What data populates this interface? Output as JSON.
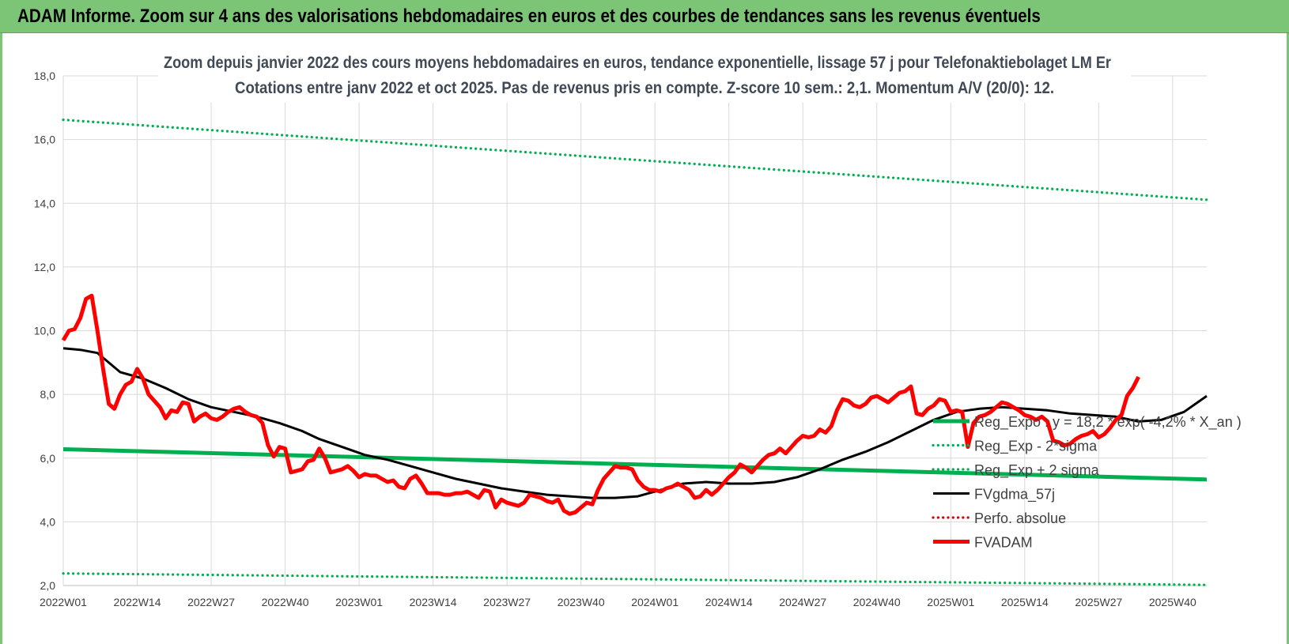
{
  "page_title": "ADAM Informe. Zoom sur 4 ans des valorisations hebdomadaires en euros et des courbes de tendances sans les revenus éventuels",
  "chart_data": {
    "type": "line",
    "title_line1": "Zoom depuis janvier 2022 des cours moyens hebdomadaires en euros, tendance exponentielle, lissage 57 j pour Telefonaktiebolaget LM Er",
    "title_line2": "Cotations entre janv 2022 et oct 2025. Pas de revenus pris en compte. Z-score 10 sem.: 2,1. Momentum A/V (20/0): 12.",
    "ylim": [
      2,
      18
    ],
    "y_ticks": [
      "2,0",
      "4,0",
      "6,0",
      "8,0",
      "10,0",
      "12,0",
      "14,0",
      "16,0",
      "18,0"
    ],
    "x_ticks": [
      "2022W01",
      "2022W14",
      "2022W27",
      "2022W40",
      "2023W01",
      "2023W14",
      "2023W27",
      "2023W40",
      "2024W01",
      "2024W14",
      "2024W27",
      "2024W40",
      "2025W01",
      "2025W14",
      "2025W27",
      "2025W40"
    ],
    "x_range_weeks": [
      0,
      201
    ],
    "legend_position": "right",
    "series": [
      {
        "name": "Reg_Expo : y = 18,2 * exp( -4,2% * X_an )",
        "style": "solid-thick",
        "color": "#00b050",
        "points": [
          [
            0,
            6.28
          ],
          [
            201,
            5.33
          ]
        ]
      },
      {
        "name": "Reg_Exp - 2*sigma",
        "style": "dotted",
        "color": "#00b050",
        "points": [
          [
            0,
            2.38
          ],
          [
            201,
            2.02
          ]
        ]
      },
      {
        "name": "Reg_Exp + 2 sigma",
        "style": "dotted",
        "color": "#00b050",
        "points": [
          [
            0,
            16.62
          ],
          [
            201,
            14.11
          ]
        ]
      },
      {
        "name": "FVgdma_57j",
        "style": "solid",
        "color": "#000000",
        "points": [
          [
            0,
            9.45
          ],
          [
            3,
            9.4
          ],
          [
            6,
            9.3
          ],
          [
            10,
            8.7
          ],
          [
            14,
            8.5
          ],
          [
            18,
            8.2
          ],
          [
            22,
            7.85
          ],
          [
            26,
            7.6
          ],
          [
            30,
            7.45
          ],
          [
            34,
            7.3
          ],
          [
            38,
            7.1
          ],
          [
            42,
            6.85
          ],
          [
            45,
            6.6
          ],
          [
            49,
            6.35
          ],
          [
            53,
            6.1
          ],
          [
            57,
            5.95
          ],
          [
            61,
            5.75
          ],
          [
            65,
            5.55
          ],
          [
            69,
            5.35
          ],
          [
            73,
            5.2
          ],
          [
            77,
            5.05
          ],
          [
            81,
            4.95
          ],
          [
            85,
            4.85
          ],
          [
            89,
            4.8
          ],
          [
            93,
            4.75
          ],
          [
            97,
            4.75
          ],
          [
            101,
            4.8
          ],
          [
            105,
            5.0
          ],
          [
            109,
            5.2
          ],
          [
            113,
            5.25
          ],
          [
            117,
            5.2
          ],
          [
            121,
            5.2
          ],
          [
            125,
            5.25
          ],
          [
            129,
            5.4
          ],
          [
            133,
            5.65
          ],
          [
            137,
            5.95
          ],
          [
            141,
            6.2
          ],
          [
            145,
            6.5
          ],
          [
            149,
            6.85
          ],
          [
            153,
            7.2
          ],
          [
            157,
            7.45
          ],
          [
            161,
            7.55
          ],
          [
            165,
            7.6
          ],
          [
            169,
            7.55
          ],
          [
            173,
            7.5
          ],
          [
            177,
            7.4
          ],
          [
            181,
            7.35
          ],
          [
            185,
            7.3
          ],
          [
            189,
            7.15
          ],
          [
            193,
            7.2
          ],
          [
            197,
            7.45
          ],
          [
            201,
            7.95
          ]
        ]
      },
      {
        "name": "Perfo. absolue",
        "style": "dotted",
        "color": "#e00000",
        "points": []
      },
      {
        "name": "FVADAM",
        "style": "solid-thick",
        "color": "#ff0000",
        "points": [
          [
            0,
            9.7
          ],
          [
            1,
            10.0
          ],
          [
            2,
            10.05
          ],
          [
            3,
            10.4
          ],
          [
            4,
            11.0
          ],
          [
            5,
            11.1
          ],
          [
            6,
            10.0
          ],
          [
            7,
            8.8
          ],
          [
            8,
            7.7
          ],
          [
            9,
            7.55
          ],
          [
            10,
            8.0
          ],
          [
            11,
            8.3
          ],
          [
            12,
            8.4
          ],
          [
            13,
            8.8
          ],
          [
            14,
            8.5
          ],
          [
            15,
            8.0
          ],
          [
            16,
            7.8
          ],
          [
            17,
            7.6
          ],
          [
            18,
            7.25
          ],
          [
            19,
            7.5
          ],
          [
            20,
            7.45
          ],
          [
            21,
            7.75
          ],
          [
            22,
            7.7
          ],
          [
            23,
            7.15
          ],
          [
            24,
            7.3
          ],
          [
            25,
            7.4
          ],
          [
            26,
            7.25
          ],
          [
            27,
            7.2
          ],
          [
            28,
            7.3
          ],
          [
            29,
            7.45
          ],
          [
            30,
            7.55
          ],
          [
            31,
            7.6
          ],
          [
            32,
            7.45
          ],
          [
            33,
            7.35
          ],
          [
            34,
            7.3
          ],
          [
            35,
            7.1
          ],
          [
            36,
            6.4
          ],
          [
            37,
            6.05
          ],
          [
            38,
            6.35
          ],
          [
            39,
            6.3
          ],
          [
            40,
            5.55
          ],
          [
            41,
            5.6
          ],
          [
            42,
            5.65
          ],
          [
            43,
            5.9
          ],
          [
            44,
            5.95
          ],
          [
            45,
            6.3
          ],
          [
            46,
            6.0
          ],
          [
            47,
            5.55
          ],
          [
            48,
            5.6
          ],
          [
            49,
            5.65
          ],
          [
            50,
            5.75
          ],
          [
            51,
            5.6
          ],
          [
            52,
            5.4
          ],
          [
            53,
            5.5
          ],
          [
            54,
            5.45
          ],
          [
            55,
            5.45
          ],
          [
            56,
            5.35
          ],
          [
            57,
            5.25
          ],
          [
            58,
            5.3
          ],
          [
            59,
            5.1
          ],
          [
            60,
            5.05
          ],
          [
            61,
            5.35
          ],
          [
            62,
            5.45
          ],
          [
            63,
            5.2
          ],
          [
            64,
            4.9
          ],
          [
            65,
            4.9
          ],
          [
            66,
            4.9
          ],
          [
            67,
            4.85
          ],
          [
            68,
            4.85
          ],
          [
            69,
            4.9
          ],
          [
            70,
            4.9
          ],
          [
            71,
            4.95
          ],
          [
            72,
            4.85
          ],
          [
            73,
            4.75
          ],
          [
            74,
            5.0
          ],
          [
            75,
            4.95
          ],
          [
            76,
            4.45
          ],
          [
            77,
            4.7
          ],
          [
            78,
            4.6
          ],
          [
            79,
            4.55
          ],
          [
            80,
            4.5
          ],
          [
            81,
            4.6
          ],
          [
            82,
            4.85
          ],
          [
            83,
            4.8
          ],
          [
            84,
            4.75
          ],
          [
            85,
            4.65
          ],
          [
            86,
            4.6
          ],
          [
            87,
            4.7
          ],
          [
            88,
            4.35
          ],
          [
            89,
            4.25
          ],
          [
            90,
            4.3
          ],
          [
            91,
            4.45
          ],
          [
            92,
            4.6
          ],
          [
            93,
            4.55
          ],
          [
            94,
            5.0
          ],
          [
            95,
            5.35
          ],
          [
            96,
            5.55
          ],
          [
            97,
            5.75
          ],
          [
            98,
            5.7
          ],
          [
            99,
            5.7
          ],
          [
            100,
            5.65
          ],
          [
            101,
            5.3
          ],
          [
            102,
            5.1
          ],
          [
            103,
            5.0
          ],
          [
            104,
            5.0
          ],
          [
            105,
            4.95
          ],
          [
            106,
            5.05
          ],
          [
            107,
            5.1
          ],
          [
            108,
            5.2
          ],
          [
            109,
            5.1
          ],
          [
            110,
            5.0
          ],
          [
            111,
            4.75
          ],
          [
            112,
            4.8
          ],
          [
            113,
            5.0
          ],
          [
            114,
            4.85
          ],
          [
            115,
            5.0
          ],
          [
            116,
            5.2
          ],
          [
            117,
            5.4
          ],
          [
            118,
            5.55
          ],
          [
            119,
            5.8
          ],
          [
            120,
            5.7
          ],
          [
            121,
            5.55
          ],
          [
            122,
            5.75
          ],
          [
            123,
            5.95
          ],
          [
            124,
            6.1
          ],
          [
            125,
            6.15
          ],
          [
            126,
            6.3
          ],
          [
            127,
            6.15
          ],
          [
            128,
            6.35
          ],
          [
            129,
            6.55
          ],
          [
            130,
            6.7
          ],
          [
            131,
            6.65
          ],
          [
            132,
            6.7
          ],
          [
            133,
            6.9
          ],
          [
            134,
            6.8
          ],
          [
            135,
            7.0
          ],
          [
            136,
            7.5
          ],
          [
            137,
            7.85
          ],
          [
            138,
            7.8
          ],
          [
            139,
            7.65
          ],
          [
            140,
            7.6
          ],
          [
            141,
            7.7
          ],
          [
            142,
            7.9
          ],
          [
            143,
            7.95
          ],
          [
            144,
            7.85
          ],
          [
            145,
            7.75
          ],
          [
            146,
            7.9
          ],
          [
            147,
            8.05
          ],
          [
            148,
            8.1
          ],
          [
            149,
            8.25
          ],
          [
            150,
            7.4
          ],
          [
            151,
            7.35
          ],
          [
            152,
            7.55
          ],
          [
            153,
            7.65
          ],
          [
            154,
            7.85
          ],
          [
            155,
            7.8
          ],
          [
            156,
            7.45
          ],
          [
            157,
            7.5
          ],
          [
            158,
            7.45
          ],
          [
            159,
            6.35
          ],
          [
            160,
            7.1
          ],
          [
            161,
            7.3
          ],
          [
            162,
            7.35
          ],
          [
            163,
            7.45
          ],
          [
            164,
            7.6
          ],
          [
            165,
            7.75
          ],
          [
            166,
            7.7
          ],
          [
            167,
            7.6
          ],
          [
            168,
            7.5
          ],
          [
            169,
            7.35
          ],
          [
            170,
            7.3
          ],
          [
            171,
            7.2
          ],
          [
            172,
            7.3
          ],
          [
            173,
            7.15
          ],
          [
            174,
            6.55
          ],
          [
            175,
            6.5
          ],
          [
            176,
            6.4
          ],
          [
            177,
            6.45
          ],
          [
            178,
            6.6
          ],
          [
            179,
            6.7
          ],
          [
            180,
            6.75
          ],
          [
            181,
            6.85
          ],
          [
            182,
            6.65
          ],
          [
            183,
            6.75
          ],
          [
            184,
            6.95
          ],
          [
            185,
            7.2
          ],
          [
            186,
            7.35
          ],
          [
            187,
            7.95
          ],
          [
            188,
            8.2
          ],
          [
            189,
            8.55
          ]
        ]
      }
    ]
  }
}
